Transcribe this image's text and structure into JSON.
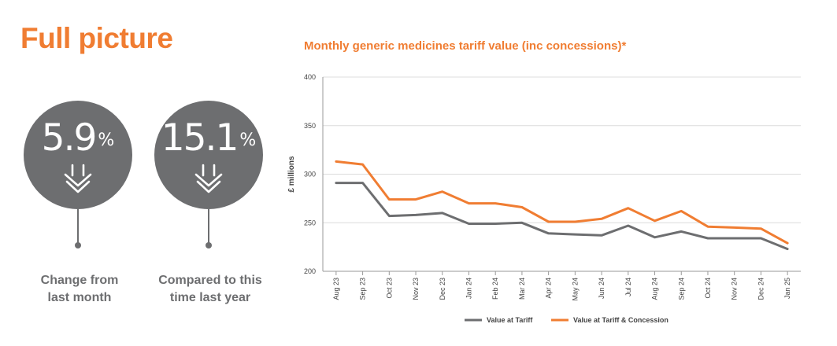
{
  "page": {
    "title": "Full picture",
    "accent_color": "#f07d32"
  },
  "stats": [
    {
      "value": "5.9",
      "unit": "%",
      "icon": "double-chevron-down-icon",
      "label": "Change from\nlast month"
    },
    {
      "value": "15.1",
      "unit": "%",
      "icon": "double-chevron-down-icon",
      "label": "Compared to this\ntime last year"
    }
  ],
  "chart_data": {
    "type": "line",
    "title": "Monthly generic medicines tariff value (inc concessions)*",
    "xlabel": "",
    "ylabel": "£ millions",
    "ylim": [
      200,
      400
    ],
    "yticks": [
      200,
      250,
      300,
      350,
      400
    ],
    "grid": true,
    "legend_position": "bottom",
    "categories": [
      "Aug 23",
      "Sep 23",
      "Oct 23",
      "Nov 23",
      "Dec 23",
      "Jan 24",
      "Feb 24",
      "Mar 24",
      "Apr 24",
      "May 24",
      "Jun 24",
      "Jul 24",
      "Aug 24",
      "Sep 24",
      "Oct 24",
      "Nov 24",
      "Dec 24",
      "Jan 25"
    ],
    "series": [
      {
        "name": "Value at Tariff",
        "color": "#6d6e70",
        "values": [
          291,
          291,
          257,
          258,
          260,
          249,
          249,
          250,
          239,
          238,
          237,
          247,
          235,
          241,
          234,
          234,
          234,
          223
        ]
      },
      {
        "name": "Value at Tariff & Concession",
        "color": "#f07d32",
        "values": [
          313,
          310,
          274,
          274,
          282,
          270,
          270,
          266,
          251,
          251,
          254,
          265,
          252,
          262,
          246,
          245,
          244,
          229
        ]
      }
    ]
  }
}
